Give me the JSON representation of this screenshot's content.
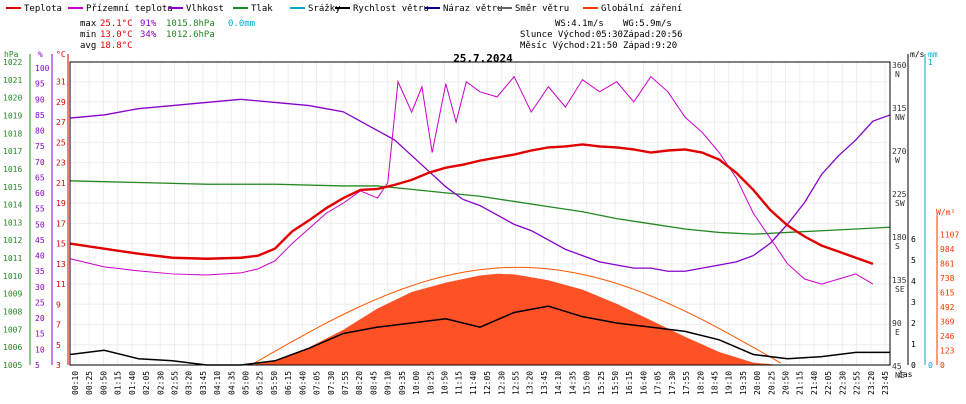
{
  "chart_data": {
    "type": "line",
    "title": "25.7.2024",
    "legend": [
      {
        "name": "Teplota",
        "color": "#e00000"
      },
      {
        "name": "Přízemní teplota",
        "color": "#cc00cc"
      },
      {
        "name": "Vlhkost",
        "color": "#8800cc"
      },
      {
        "name": "Tlak",
        "color": "#228822"
      },
      {
        "name": "Srážky",
        "color": "#00aacc"
      },
      {
        "name": "Rychlost větru",
        "color": "#000000"
      },
      {
        "name": "Náraz větru",
        "color": "#000088"
      },
      {
        "name": "Směr větru",
        "color": "#666666"
      },
      {
        "name": "Globální záření",
        "color": "#ff3300"
      }
    ],
    "stats": {
      "max": {
        "label": "max",
        "temp": "25.1°C",
        "hum": "91%",
        "press": "1015.8hPa",
        "rain": "0.0mm"
      },
      "min": {
        "label": "min",
        "temp": "13.0°C",
        "hum": "34%",
        "press": "1012.6hPa"
      },
      "avg": {
        "label": "avg",
        "temp": "18.8°C"
      }
    },
    "info": {
      "ws": "WS:4.1m/s",
      "wg": "WG:5.9m/s",
      "sun": "Slunce Východ:05:30",
      "sunset": "Západ:20:56",
      "moon": "Měsíc Východ:21:50",
      "moonset": "Západ:9:20"
    },
    "axis_units": {
      "hpa": "hPa",
      "pct": "%",
      "temp": "°C",
      "ms": "m/s",
      "mm": "mm",
      "wm2": "W/m²",
      "time": "čas"
    },
    "y_hpa_ticks": [
      "1022",
      "1021",
      "1020",
      "1019",
      "1018",
      "1017",
      "1016",
      "1015",
      "1014",
      "1013",
      "1012",
      "1011",
      "1010",
      "1009",
      "1008",
      "1007",
      "1006",
      "1005"
    ],
    "y_pct_ticks": [
      "100",
      "95",
      "90",
      "85",
      "80",
      "75",
      "70",
      "65",
      "60",
      "55",
      "50",
      "45",
      "40",
      "35",
      "30",
      "25",
      "20",
      "15",
      "10",
      "5"
    ],
    "y_temp_ticks": [
      "31",
      "29",
      "27",
      "25",
      "23",
      "21",
      "19",
      "17",
      "15",
      "13",
      "11",
      "9",
      "7",
      "5",
      "3"
    ],
    "y_dir_ticks": [
      "360 N",
      "315 NW",
      "270 W",
      "225 SW",
      "180 S",
      "135 SE",
      "90 E",
      "45 NE"
    ],
    "y_ms_ticks": [
      "6",
      "5",
      "4",
      "3",
      "2",
      "1",
      "0"
    ],
    "y_mm_ticks": [
      "1",
      "0"
    ],
    "y_wm2_ticks": [
      "1107",
      "984",
      "861",
      "738",
      "615",
      "492",
      "369",
      "246",
      "123",
      "0"
    ],
    "x_ticks": [
      "00:10",
      "00:25",
      "00:50",
      "01:15",
      "01:40",
      "02:05",
      "02:30",
      "02:55",
      "03:20",
      "03:45",
      "04:10",
      "04:35",
      "05:00",
      "05:25",
      "05:50",
      "06:15",
      "06:40",
      "07:05",
      "07:30",
      "07:55",
      "08:20",
      "08:45",
      "09:10",
      "09:35",
      "10:00",
      "10:25",
      "10:50",
      "11:15",
      "11:40",
      "12:05",
      "12:30",
      "12:55",
      "13:20",
      "13:45",
      "14:10",
      "14:35",
      "15:00",
      "15:25",
      "15:50",
      "16:15",
      "16:40",
      "17:05",
      "17:30",
      "17:55",
      "18:20",
      "18:45",
      "19:10",
      "19:35",
      "20:00",
      "20:25",
      "20:50",
      "21:15",
      "21:40",
      "22:05",
      "22:30",
      "22:55",
      "23:20",
      "23:45"
    ],
    "series": [
      {
        "name": "Teplota",
        "unit": "°C",
        "color": "#e00000",
        "points": [
          [
            0,
            15.0
          ],
          [
            1,
            14.5
          ],
          [
            2,
            14.0
          ],
          [
            3,
            13.6
          ],
          [
            4,
            13.5
          ],
          [
            5,
            13.6
          ],
          [
            5.5,
            13.8
          ],
          [
            6,
            14.5
          ],
          [
            6.5,
            16.2
          ],
          [
            7,
            17.3
          ],
          [
            7.5,
            18.5
          ],
          [
            8,
            19.5
          ],
          [
            8.5,
            20.3
          ],
          [
            9,
            20.4
          ],
          [
            9.5,
            20.8
          ],
          [
            10,
            21.3
          ],
          [
            10.5,
            22.0
          ],
          [
            11,
            22.5
          ],
          [
            11.5,
            22.8
          ],
          [
            12,
            23.2
          ],
          [
            12.5,
            23.5
          ],
          [
            13,
            23.8
          ],
          [
            13.5,
            24.2
          ],
          [
            14,
            24.5
          ],
          [
            14.5,
            24.6
          ],
          [
            15,
            24.8
          ],
          [
            15.5,
            24.6
          ],
          [
            16,
            24.5
          ],
          [
            16.5,
            24.3
          ],
          [
            17,
            24.0
          ],
          [
            17.5,
            24.2
          ],
          [
            18,
            24.3
          ],
          [
            18.5,
            24.0
          ],
          [
            19,
            23.3
          ],
          [
            19.5,
            22.0
          ],
          [
            20,
            20.3
          ],
          [
            20.5,
            18.3
          ],
          [
            21,
            16.8
          ],
          [
            21.5,
            15.7
          ],
          [
            22,
            14.8
          ],
          [
            22.5,
            14.2
          ],
          [
            23,
            13.6
          ],
          [
            23.5,
            13.0
          ]
        ]
      },
      {
        "name": "Přízemní teplota",
        "unit": "°C",
        "color": "#cc00cc",
        "points": [
          [
            0,
            13.5
          ],
          [
            1,
            12.7
          ],
          [
            2,
            12.3
          ],
          [
            3,
            12.0
          ],
          [
            4,
            11.9
          ],
          [
            5,
            12.1
          ],
          [
            5.5,
            12.5
          ],
          [
            6,
            13.3
          ],
          [
            6.5,
            15.0
          ],
          [
            7,
            16.5
          ],
          [
            7.5,
            18.0
          ],
          [
            8,
            19.0
          ],
          [
            8.5,
            20.2
          ],
          [
            9,
            19.5
          ],
          [
            9.3,
            21.0
          ],
          [
            9.6,
            31.0
          ],
          [
            10,
            28.0
          ],
          [
            10.3,
            30.5
          ],
          [
            10.6,
            24.0
          ],
          [
            11,
            30.8
          ],
          [
            11.3,
            27.0
          ],
          [
            11.6,
            31.0
          ],
          [
            12,
            30.0
          ],
          [
            12.5,
            29.5
          ],
          [
            13,
            31.5
          ],
          [
            13.5,
            28.0
          ],
          [
            14,
            30.5
          ],
          [
            14.5,
            28.5
          ],
          [
            15,
            31.2
          ],
          [
            15.5,
            30.0
          ],
          [
            16,
            31.0
          ],
          [
            16.5,
            29.0
          ],
          [
            17,
            31.5
          ],
          [
            17.5,
            30.0
          ],
          [
            18,
            27.5
          ],
          [
            18.5,
            26.0
          ],
          [
            19,
            24.0
          ],
          [
            19.5,
            21.5
          ],
          [
            20,
            18.0
          ],
          [
            20.5,
            15.5
          ],
          [
            21,
            13.0
          ],
          [
            21.5,
            11.5
          ],
          [
            22,
            11.0
          ],
          [
            22.5,
            11.5
          ],
          [
            23,
            12.0
          ],
          [
            23.5,
            11.0
          ]
        ]
      },
      {
        "name": "Vlhkost",
        "unit": "%",
        "color": "#8800cc",
        "points": [
          [
            0,
            84
          ],
          [
            1,
            85
          ],
          [
            2,
            87
          ],
          [
            3,
            88
          ],
          [
            4,
            89
          ],
          [
            5,
            90
          ],
          [
            6,
            89
          ],
          [
            7,
            88
          ],
          [
            7.5,
            87
          ],
          [
            8,
            86
          ],
          [
            8.5,
            83
          ],
          [
            9,
            80
          ],
          [
            9.5,
            77
          ],
          [
            10,
            72
          ],
          [
            10.5,
            67
          ],
          [
            11,
            62
          ],
          [
            11.5,
            58
          ],
          [
            12,
            56
          ],
          [
            12.5,
            53
          ],
          [
            13,
            50
          ],
          [
            13.5,
            48
          ],
          [
            14,
            45
          ],
          [
            14.5,
            42
          ],
          [
            15,
            40
          ],
          [
            15.5,
            38
          ],
          [
            16,
            37
          ],
          [
            16.5,
            36
          ],
          [
            17,
            36
          ],
          [
            17.5,
            35
          ],
          [
            18,
            35
          ],
          [
            18.5,
            36
          ],
          [
            19,
            37
          ],
          [
            19.5,
            38
          ],
          [
            20,
            40
          ],
          [
            20.5,
            44
          ],
          [
            21,
            50
          ],
          [
            21.5,
            57
          ],
          [
            22,
            66
          ],
          [
            22.5,
            72
          ],
          [
            23,
            77
          ],
          [
            23.5,
            83
          ],
          [
            24,
            85
          ]
        ]
      },
      {
        "name": "Tlak",
        "unit": "hPa",
        "color": "#228822",
        "points": [
          [
            0,
            1015.7
          ],
          [
            2,
            1015.6
          ],
          [
            4,
            1015.5
          ],
          [
            6,
            1015.5
          ],
          [
            8,
            1015.4
          ],
          [
            9,
            1015.4
          ],
          [
            10,
            1015.2
          ],
          [
            11,
            1015.0
          ],
          [
            12,
            1014.8
          ],
          [
            13,
            1014.5
          ],
          [
            14,
            1014.2
          ],
          [
            15,
            1013.9
          ],
          [
            16,
            1013.5
          ],
          [
            17,
            1013.2
          ],
          [
            18,
            1012.9
          ],
          [
            19,
            1012.7
          ],
          [
            20,
            1012.6
          ],
          [
            21,
            1012.7
          ],
          [
            22,
            1012.8
          ],
          [
            23,
            1012.9
          ],
          [
            24,
            1013.0
          ]
        ]
      },
      {
        "name": "Rychlost větru",
        "unit": "m/s",
        "color": "#000000",
        "points": [
          [
            0,
            0.5
          ],
          [
            1,
            0.7
          ],
          [
            2,
            0.3
          ],
          [
            3,
            0.2
          ],
          [
            4,
            0.0
          ],
          [
            5,
            0.0
          ],
          [
            6,
            0.2
          ],
          [
            7,
            0.8
          ],
          [
            8,
            1.5
          ],
          [
            9,
            1.8
          ],
          [
            10,
            2.0
          ],
          [
            11,
            2.2
          ],
          [
            12,
            1.8
          ],
          [
            13,
            2.5
          ],
          [
            14,
            2.8
          ],
          [
            15,
            2.3
          ],
          [
            16,
            2.0
          ],
          [
            17,
            1.8
          ],
          [
            18,
            1.6
          ],
          [
            19,
            1.2
          ],
          [
            20,
            0.5
          ],
          [
            21,
            0.3
          ],
          [
            22,
            0.4
          ],
          [
            23,
            0.6
          ],
          [
            24,
            0.6
          ]
        ]
      },
      {
        "name": "Globální záření",
        "unit": "W/m²",
        "color": "#ff3300",
        "points": [
          [
            5.3,
            0
          ],
          [
            6,
            40
          ],
          [
            7,
            150
          ],
          [
            8,
            300
          ],
          [
            9,
            480
          ],
          [
            10,
            620
          ],
          [
            11,
            700
          ],
          [
            12,
            760
          ],
          [
            12.5,
            775
          ],
          [
            13,
            770
          ],
          [
            14,
            720
          ],
          [
            15,
            640
          ],
          [
            16,
            520
          ],
          [
            17,
            380
          ],
          [
            18,
            240
          ],
          [
            19,
            110
          ],
          [
            20,
            20
          ],
          [
            20.8,
            0
          ]
        ]
      }
    ]
  }
}
